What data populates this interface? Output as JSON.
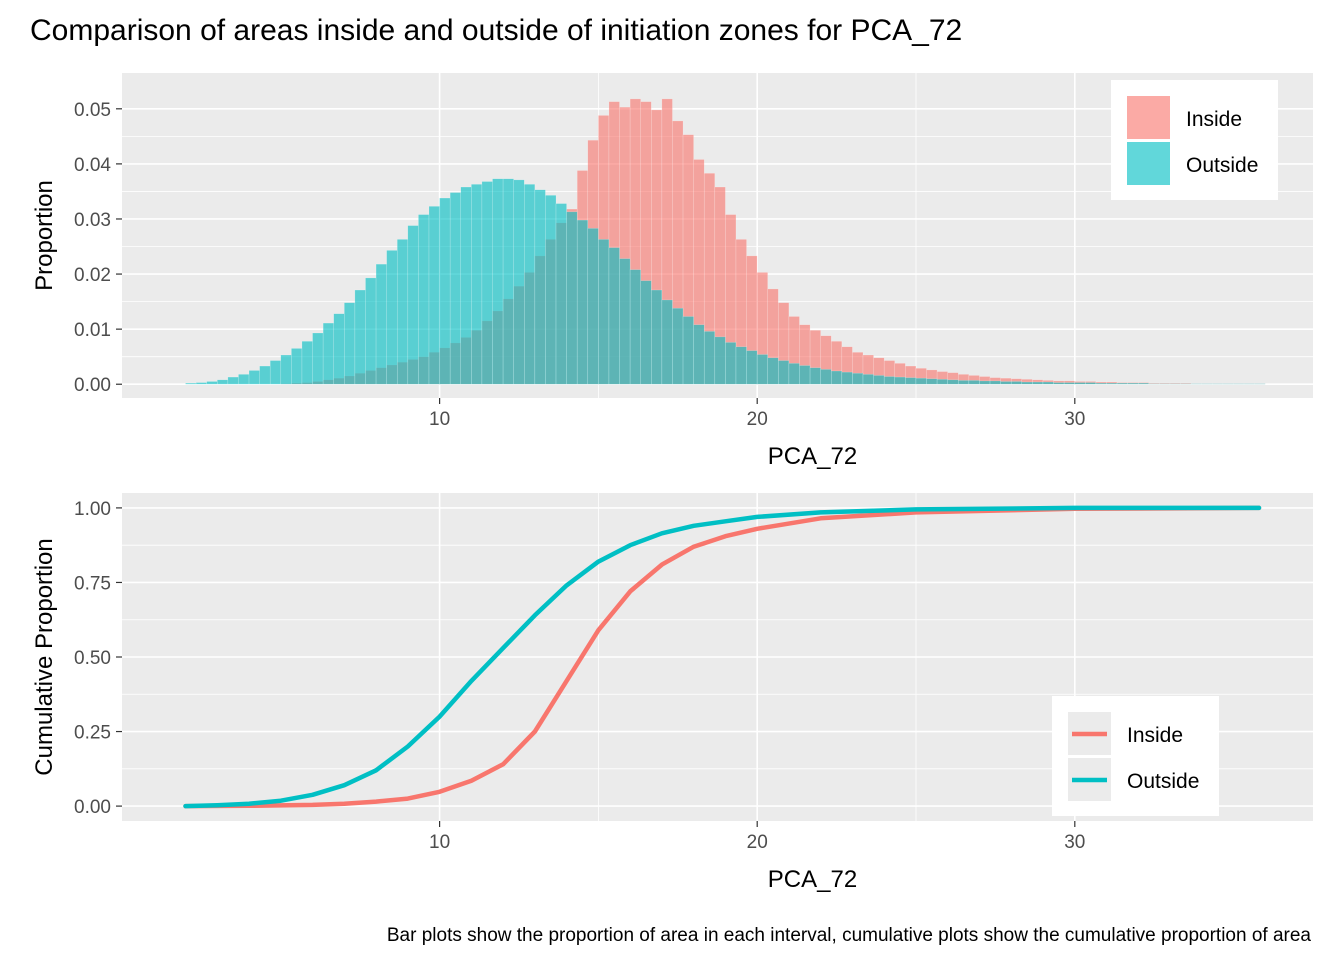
{
  "title": "Comparison of areas inside and outside of initiation zones for PCA_72",
  "caption": "Bar plots show the proportion of area in each interval, cumulative plots show the cumulative proportion of area",
  "colors": {
    "inside": "#F8766D",
    "outside": "#00BFC4",
    "panel": "#EBEBEB",
    "grid": "#FFFFFF"
  },
  "chart_data": [
    {
      "type": "bar",
      "xlabel": "PCA_72",
      "ylabel": "Proportion",
      "xlim": [
        0,
        37.5
      ],
      "ylim": [
        -0.0025,
        0.0565
      ],
      "xticks": [
        10,
        20,
        30
      ],
      "xtick_labels": [
        "10",
        "20",
        "30"
      ],
      "yticks": [
        0,
        0.01,
        0.02,
        0.03,
        0.04,
        0.05
      ],
      "ytick_labels": [
        "0.00",
        "0.01",
        "0.02",
        "0.03",
        "0.04",
        "0.05"
      ],
      "grid": true,
      "legend": {
        "position": "top-right",
        "entries": [
          "Inside",
          "Outside"
        ]
      },
      "bin_start": 2,
      "bin_width": 0.3333,
      "series": [
        {
          "name": "Inside",
          "values": [
            0,
            0,
            0,
            0,
            0,
            0,
            0,
            0,
            0,
            0.0001,
            0.0002,
            0.0003,
            0.0005,
            0.0008,
            0.0011,
            0.0015,
            0.002,
            0.0025,
            0.003,
            0.0035,
            0.004,
            0.0045,
            0.005,
            0.0058,
            0.0066,
            0.0075,
            0.0085,
            0.0098,
            0.0115,
            0.0133,
            0.0155,
            0.0178,
            0.0203,
            0.0233,
            0.0263,
            0.0293,
            0.0318,
            0.0388,
            0.0443,
            0.0488,
            0.0513,
            0.0503,
            0.0518,
            0.0513,
            0.0498,
            0.0518,
            0.0478,
            0.0453,
            0.0408,
            0.0383,
            0.0358,
            0.0308,
            0.0263,
            0.0233,
            0.0203,
            0.0173,
            0.0148,
            0.0123,
            0.0108,
            0.0098,
            0.0088,
            0.0078,
            0.0068,
            0.0058,
            0.0053,
            0.0048,
            0.0043,
            0.0038,
            0.0033,
            0.0029,
            0.0026,
            0.0023,
            0.0021,
            0.0018,
            0.0016,
            0.0014,
            0.0012,
            0.0011,
            0.001,
            0.0009,
            0.0008,
            0.0007,
            0.0006,
            0.0006,
            0.0005,
            0.0005,
            0.0004,
            0.0004,
            0.0003,
            0.0003,
            0.0003,
            0.0002,
            0.0002,
            0.0002,
            0.0002,
            0.0001,
            0.0001,
            0.0001,
            0.0001,
            0.0001,
            0.0001,
            0.0001
          ]
        },
        {
          "name": "Outside",
          "values": [
            0.0002,
            0.0003,
            0.0005,
            0.0008,
            0.0013,
            0.0018,
            0.0025,
            0.0033,
            0.0043,
            0.0053,
            0.0065,
            0.0078,
            0.0093,
            0.0111,
            0.0128,
            0.0148,
            0.0171,
            0.0193,
            0.0218,
            0.0243,
            0.0263,
            0.0288,
            0.0308,
            0.0323,
            0.0338,
            0.0348,
            0.0358,
            0.0363,
            0.0368,
            0.0373,
            0.0373,
            0.0371,
            0.0363,
            0.0353,
            0.0343,
            0.0328,
            0.0313,
            0.0298,
            0.0283,
            0.0263,
            0.0248,
            0.0228,
            0.0208,
            0.0188,
            0.0171,
            0.0153,
            0.0138,
            0.0123,
            0.0108,
            0.0096,
            0.0086,
            0.0076,
            0.0068,
            0.0061,
            0.0054,
            0.0048,
            0.0043,
            0.0038,
            0.0034,
            0.003,
            0.0027,
            0.0024,
            0.0022,
            0.002,
            0.0018,
            0.0016,
            0.0014,
            0.0013,
            0.0012,
            0.0011,
            0.001,
            0.0009,
            0.0008,
            0.0007,
            0.0007,
            0.0006,
            0.0006,
            0.0005,
            0.0005,
            0.0004,
            0.0004,
            0.0004,
            0.0003,
            0.0003,
            0.0003,
            0.0003,
            0.0002,
            0.0002,
            0.0002,
            0.0002,
            0.0002,
            0.0001,
            0.0001,
            0.0001,
            0.0001,
            0.0001,
            0.0001,
            0.0001,
            0.0001,
            0.0001,
            0.0001,
            0.0001
          ]
        }
      ]
    },
    {
      "type": "line",
      "xlabel": "PCA_72",
      "ylabel": "Cumulative Proportion",
      "xlim": [
        0,
        37.5
      ],
      "ylim": [
        -0.05,
        1.05
      ],
      "xticks": [
        10,
        20,
        30
      ],
      "xtick_labels": [
        "10",
        "20",
        "30"
      ],
      "yticks": [
        0,
        0.25,
        0.5,
        0.75,
        1
      ],
      "ytick_labels": [
        "0.00",
        "0.25",
        "0.50",
        "0.75",
        "1.00"
      ],
      "grid": true,
      "legend": {
        "position": "bottom-right",
        "entries": [
          "Inside",
          "Outside"
        ]
      },
      "series": [
        {
          "name": "Inside",
          "x": [
            2,
            4,
            6,
            7,
            8,
            9,
            10,
            11,
            12,
            13,
            14,
            15,
            16,
            17,
            18,
            19,
            20,
            22,
            25,
            30,
            35.8
          ],
          "y": [
            0,
            0.001,
            0.004,
            0.008,
            0.015,
            0.025,
            0.048,
            0.085,
            0.14,
            0.25,
            0.42,
            0.59,
            0.72,
            0.81,
            0.87,
            0.905,
            0.93,
            0.965,
            0.985,
            0.997,
            1.0
          ]
        },
        {
          "name": "Outside",
          "x": [
            2,
            3,
            4,
            5,
            6,
            7,
            8,
            9,
            10,
            11,
            12,
            13,
            14,
            15,
            16,
            17,
            18,
            19,
            20,
            22,
            25,
            30,
            35.8
          ],
          "y": [
            0,
            0.003,
            0.008,
            0.018,
            0.038,
            0.07,
            0.12,
            0.2,
            0.3,
            0.42,
            0.53,
            0.64,
            0.74,
            0.82,
            0.875,
            0.915,
            0.94,
            0.955,
            0.97,
            0.985,
            0.995,
            1.0,
            1.0
          ]
        }
      ]
    }
  ]
}
